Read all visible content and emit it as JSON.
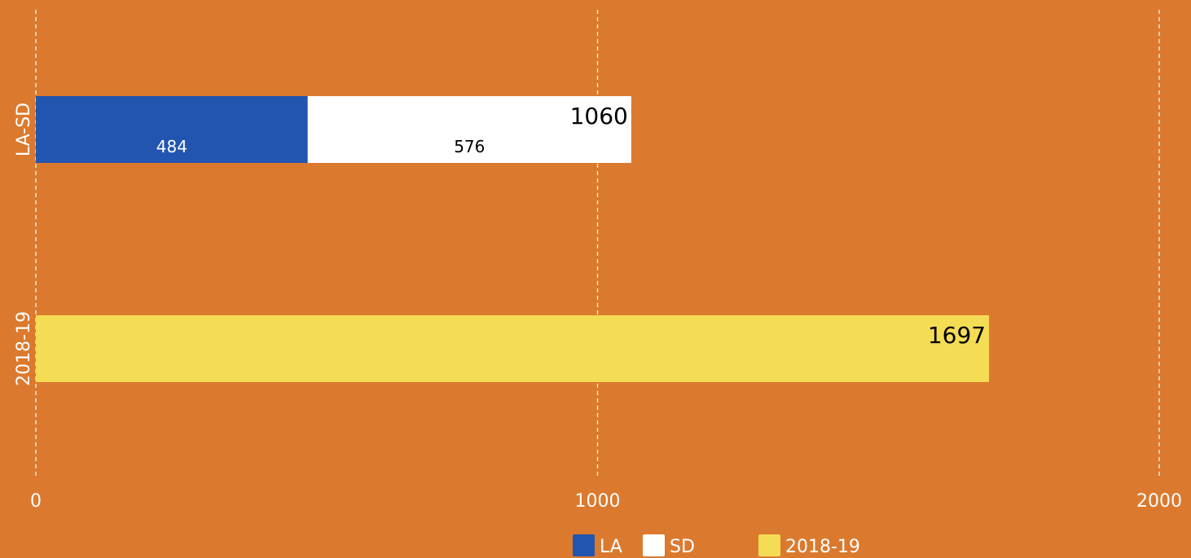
{
  "chart_data": {
    "type": "bar",
    "orientation": "horizontal",
    "stacked": true,
    "categories": [
      "LA-SD",
      "2018-19"
    ],
    "series": [
      {
        "name": "LA",
        "color": "#2255B0",
        "values": [
          484,
          null
        ],
        "label_color": "#ffffff"
      },
      {
        "name": "SD",
        "color": "#FFFFFF",
        "values": [
          576,
          null
        ],
        "label_color": "#000000"
      },
      {
        "name": "2018-19",
        "color": "#F5DC55",
        "values": [
          null,
          1697
        ],
        "label_color": "#000000"
      }
    ],
    "totals": [
      "1060",
      "1697"
    ],
    "xlim": [
      0,
      2000
    ],
    "xticks": [
      0,
      1000,
      2000
    ],
    "tick_labels": [
      "0",
      "1000",
      "2000"
    ],
    "grid": true,
    "legend_position": "bottom",
    "colors": {
      "background": "#DB7A2E",
      "grid": "#FFFFFF"
    }
  }
}
